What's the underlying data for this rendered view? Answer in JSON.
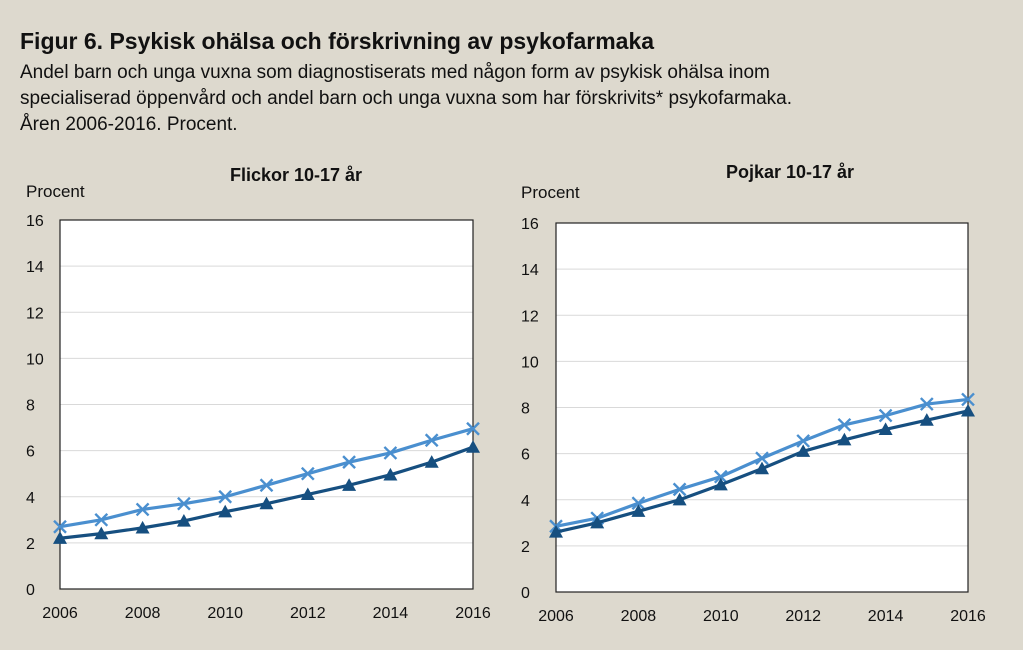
{
  "figure": {
    "title": "Figur 6. Psykisk ohälsa och förskrivning av psykofarmaka",
    "subtitle_lines": [
      "Andel barn och unga vuxna som diagnostiserats med någon form av psykisk ohälsa inom",
      "specialiserad öppenvård och andel barn och unga vuxna som har förskrivits* psykofarmaka.",
      "Åren 2006-2016. Procent."
    ]
  },
  "chart_data": [
    {
      "type": "line",
      "title": "Flickor 10-17 år",
      "ylabel": "Procent",
      "xlabel": "",
      "x": [
        2006,
        2007,
        2008,
        2009,
        2010,
        2011,
        2012,
        2013,
        2014,
        2015,
        2016
      ],
      "xlim": [
        2006,
        2016
      ],
      "xticks": [
        "2006",
        "2008",
        "2010",
        "2012",
        "2014",
        "2016"
      ],
      "ylim": [
        0,
        16
      ],
      "yticks": [
        "0",
        "2",
        "4",
        "6",
        "8",
        "10",
        "12",
        "14",
        "16"
      ],
      "grid": true,
      "series": [
        {
          "marker": "x",
          "color": "#4a8fcf",
          "values": [
            2.7,
            3.0,
            3.45,
            3.7,
            4.0,
            4.5,
            5.0,
            5.5,
            5.9,
            6.45,
            6.95
          ]
        },
        {
          "marker": "triangle",
          "color": "#164f80",
          "values": [
            2.2,
            2.4,
            2.65,
            2.95,
            3.35,
            3.7,
            4.1,
            4.5,
            4.95,
            5.5,
            6.15
          ]
        }
      ]
    },
    {
      "type": "line",
      "title": "Pojkar 10-17 år",
      "ylabel": "Procent",
      "xlabel": "",
      "x": [
        2006,
        2007,
        2008,
        2009,
        2010,
        2011,
        2012,
        2013,
        2014,
        2015,
        2016
      ],
      "xlim": [
        2006,
        2016
      ],
      "xticks": [
        "2006",
        "2008",
        "2010",
        "2012",
        "2014",
        "2016"
      ],
      "ylim": [
        0,
        16
      ],
      "yticks": [
        "0",
        "2",
        "4",
        "6",
        "8",
        "10",
        "12",
        "14",
        "16"
      ],
      "grid": true,
      "series": [
        {
          "marker": "x",
          "color": "#4a8fcf",
          "values": [
            2.85,
            3.2,
            3.85,
            4.45,
            5.0,
            5.8,
            6.55,
            7.25,
            7.65,
            8.15,
            8.35
          ]
        },
        {
          "marker": "triangle",
          "color": "#164f80",
          "values": [
            2.6,
            3.0,
            3.5,
            4.0,
            4.65,
            5.35,
            6.1,
            6.6,
            7.05,
            7.45,
            7.85
          ]
        }
      ]
    }
  ]
}
